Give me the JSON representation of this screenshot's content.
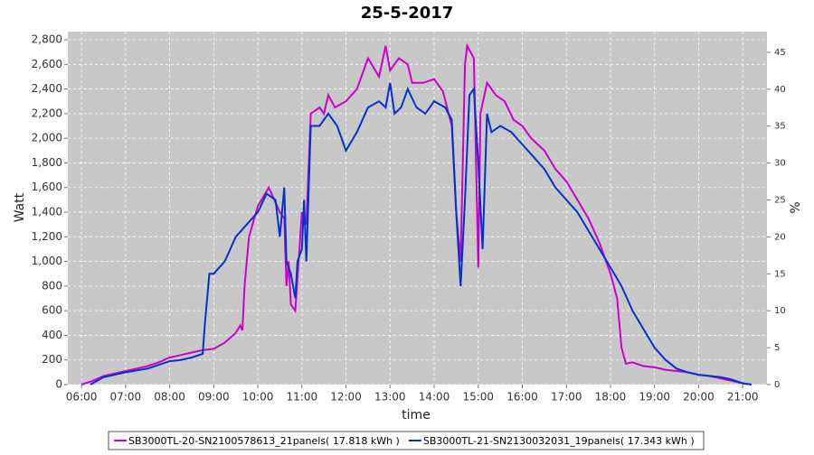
{
  "chart_data": {
    "type": "line",
    "title": "25-5-2017",
    "xlabel": "time",
    "ylabel": "Watt",
    "y2label": "%",
    "xlim": [
      5.69,
      21.55
    ],
    "xticks": [
      {
        "value": 6,
        "label": "06:00"
      },
      {
        "value": 7,
        "label": "07:00"
      },
      {
        "value": 8,
        "label": "08:00"
      },
      {
        "value": 9,
        "label": "09:00"
      },
      {
        "value": 10,
        "label": "10:00"
      },
      {
        "value": 11,
        "label": "11:00"
      },
      {
        "value": 12,
        "label": "12:00"
      },
      {
        "value": 13,
        "label": "13:00"
      },
      {
        "value": 14,
        "label": "14:00"
      },
      {
        "value": 15,
        "label": "15:00"
      },
      {
        "value": 16,
        "label": "16:00"
      },
      {
        "value": 17,
        "label": "17:00"
      },
      {
        "value": 18,
        "label": "18:00"
      },
      {
        "value": 19,
        "label": "19:00"
      },
      {
        "value": 20,
        "label": "20:00"
      },
      {
        "value": 21,
        "label": "21:00"
      }
    ],
    "ylim": [
      0,
      2866
    ],
    "yticks": [
      0,
      200,
      400,
      600,
      800,
      {
        "value": 1000,
        "label": "1,000"
      },
      {
        "value": 1200,
        "label": "1,200"
      },
      {
        "value": 1400,
        "label": "1,400"
      },
      {
        "value": 1600,
        "label": "1,600"
      },
      {
        "value": 1800,
        "label": "1,800"
      },
      {
        "value": 2000,
        "label": "2,000"
      },
      {
        "value": 2200,
        "label": "2,200"
      },
      {
        "value": 2400,
        "label": "2,400"
      },
      {
        "value": 2600,
        "label": "2,600"
      },
      {
        "value": 2800,
        "label": "2,800"
      }
    ],
    "y2lim": [
      0,
      47.8
    ],
    "y2ticks": [
      0,
      5,
      10,
      15,
      20,
      25,
      30,
      35,
      40,
      45
    ],
    "grid": true,
    "legend": "bottom",
    "series": [
      {
        "name": "SB3000TL-20-SN2100578613_21panels( 17.818 kWh )",
        "color": "#cc00cc",
        "x": [
          6.0,
          6.25,
          6.5,
          6.75,
          7.0,
          7.25,
          7.5,
          7.75,
          8.0,
          8.25,
          8.5,
          8.75,
          9.0,
          9.25,
          9.5,
          9.6,
          9.65,
          9.7,
          9.8,
          10.0,
          10.25,
          10.5,
          10.6,
          10.65,
          10.7,
          10.75,
          10.85,
          11.0,
          11.1,
          11.2,
          11.4,
          11.5,
          11.6,
          11.75,
          12.0,
          12.25,
          12.5,
          12.75,
          12.9,
          13.0,
          13.2,
          13.4,
          13.5,
          13.75,
          14.0,
          14.2,
          14.4,
          14.5,
          14.6,
          14.7,
          14.75,
          14.9,
          15.0,
          15.05,
          15.2,
          15.4,
          15.6,
          15.8,
          16.0,
          16.2,
          16.5,
          16.75,
          17.0,
          17.25,
          17.5,
          17.75,
          18.0,
          18.15,
          18.25,
          18.35,
          18.5,
          18.75,
          19.0,
          19.25,
          19.5,
          19.75,
          20.0,
          20.25,
          20.5,
          20.75,
          21.0,
          21.2
        ],
        "values": [
          0,
          30,
          70,
          90,
          110,
          130,
          150,
          180,
          220,
          240,
          260,
          280,
          290,
          340,
          420,
          480,
          440,
          800,
          1200,
          1450,
          1600,
          1400,
          1350,
          800,
          1000,
          650,
          600,
          1400,
          1300,
          2200,
          2250,
          2200,
          2350,
          2250,
          2300,
          2400,
          2650,
          2500,
          2750,
          2550,
          2650,
          2600,
          2450,
          2450,
          2480,
          2380,
          2100,
          1400,
          1000,
          2600,
          2750,
          2650,
          950,
          2200,
          2450,
          2350,
          2300,
          2150,
          2100,
          2000,
          1900,
          1750,
          1650,
          1500,
          1350,
          1150,
          900,
          700,
          300,
          170,
          180,
          150,
          140,
          120,
          110,
          100,
          80,
          70,
          50,
          30,
          10,
          0
        ]
      },
      {
        "name": "SB3000TL-21-SN2130032031_19panels( 17.343 kWh )",
        "color": "#0033cc",
        "x": [
          6.2,
          6.5,
          7.0,
          7.5,
          8.0,
          8.25,
          8.5,
          8.75,
          8.8,
          8.9,
          9.0,
          9.25,
          9.5,
          9.75,
          10.0,
          10.2,
          10.4,
          10.5,
          10.6,
          10.65,
          10.75,
          10.85,
          10.9,
          11.0,
          11.05,
          11.1,
          11.2,
          11.4,
          11.6,
          11.8,
          12.0,
          12.25,
          12.5,
          12.75,
          12.9,
          13.0,
          13.1,
          13.25,
          13.4,
          13.6,
          13.8,
          14.0,
          14.25,
          14.4,
          14.5,
          14.6,
          14.7,
          14.8,
          14.9,
          15.0,
          15.1,
          15.2,
          15.3,
          15.5,
          15.75,
          16.0,
          16.25,
          16.5,
          16.75,
          17.0,
          17.25,
          17.5,
          17.75,
          18.0,
          18.25,
          18.5,
          18.75,
          19.0,
          19.25,
          19.5,
          19.75,
          20.0,
          20.5,
          20.75,
          21.0,
          21.2
        ],
        "values": [
          0,
          60,
          100,
          130,
          190,
          200,
          220,
          250,
          500,
          900,
          900,
          1000,
          1200,
          1300,
          1400,
          1550,
          1500,
          1200,
          1600,
          1000,
          900,
          700,
          1000,
          1100,
          1500,
          1000,
          2100,
          2100,
          2200,
          2100,
          1900,
          2050,
          2250,
          2300,
          2250,
          2450,
          2200,
          2250,
          2400,
          2250,
          2200,
          2300,
          2250,
          2150,
          1400,
          800,
          1500,
          2350,
          2400,
          1800,
          1100,
          2200,
          2050,
          2100,
          2050,
          1950,
          1850,
          1750,
          1600,
          1500,
          1400,
          1250,
          1100,
          950,
          800,
          600,
          450,
          300,
          200,
          130,
          100,
          80,
          60,
          40,
          10,
          0
        ]
      }
    ]
  }
}
